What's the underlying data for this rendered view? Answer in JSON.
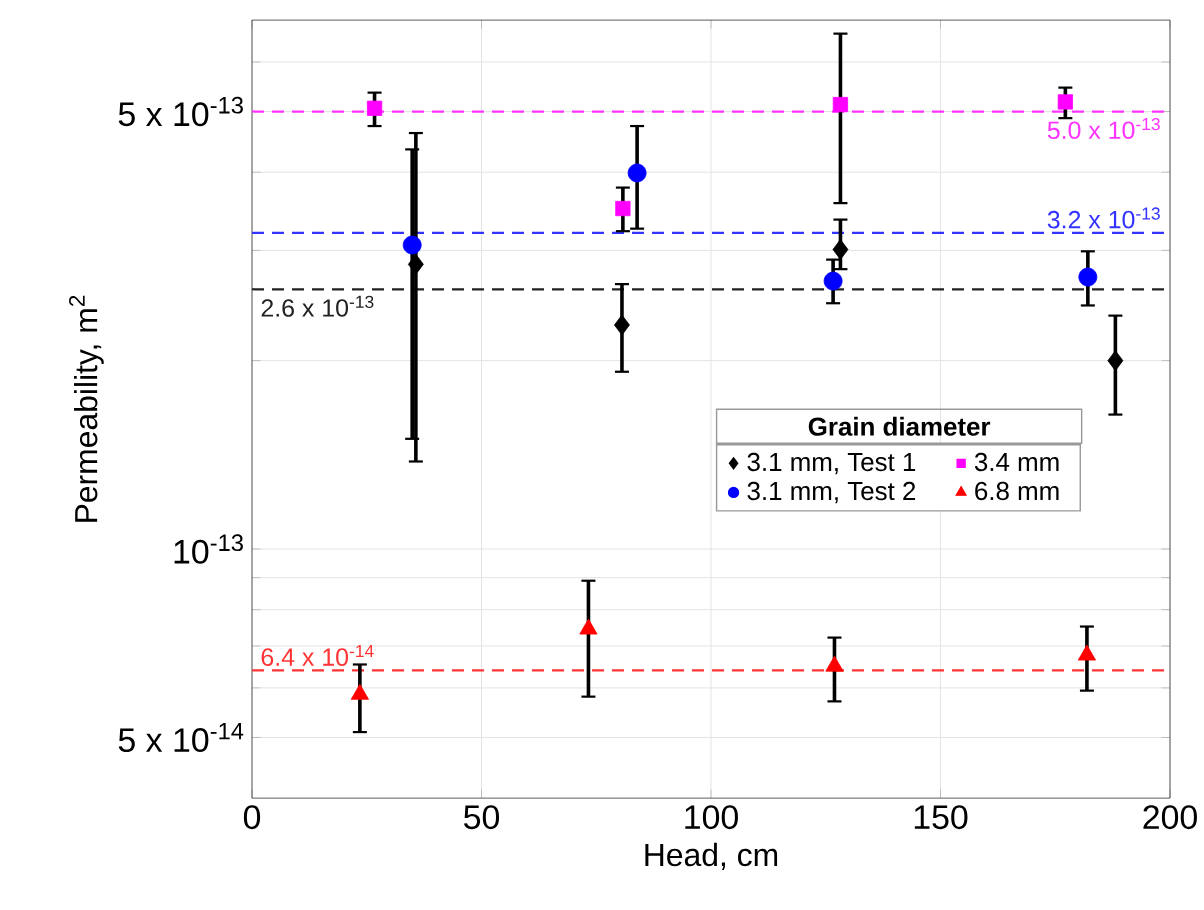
{
  "chart_data": {
    "type": "scatter",
    "xlabel": "Head, cm",
    "ylabel": "Permeability, m$^{2}$",
    "legend_title": "Grain diameter",
    "xlim": [
      0,
      200
    ],
    "xticks": [
      0,
      50,
      100,
      150,
      200
    ],
    "ylim": [
      4e-14,
      7e-13
    ],
    "yticks": [
      {
        "value": 5e-14,
        "label": "5 x 10$^{-14}$"
      },
      {
        "value": 6e-14,
        "label": null
      },
      {
        "value": 7e-14,
        "label": null
      },
      {
        "value": 8e-14,
        "label": null
      },
      {
        "value": 9e-14,
        "label": null
      },
      {
        "value": 1e-13,
        "label": "10$^{-13}$"
      },
      {
        "value": 2e-13,
        "label": null
      },
      {
        "value": 3e-13,
        "label": null
      },
      {
        "value": 4e-13,
        "label": null
      },
      {
        "value": 5e-13,
        "label": "5 x 10$^{-13}$"
      },
      {
        "value": 6e-13,
        "label": null
      }
    ],
    "log": "y",
    "grid": true,
    "legend": "right",
    "series": [
      {
        "name": "3.1 mm, Test 1",
        "color": "#000000",
        "marker": "diamond",
        "x": [
          35.7,
          80.6,
          128.2,
          188.1
        ],
        "values": [
          2.85e-13,
          2.28e-13,
          3.01e-13,
          2e-13
        ],
        "errors": [
          [
            1.38e-13,
            4.62e-13
          ],
          [
            1.92e-13,
            2.65e-13
          ],
          [
            2.8e-13,
            3.36e-13
          ],
          [
            1.64e-13,
            2.36e-13
          ]
        ]
      },
      {
        "name": "3.1 mm, Test 2",
        "color": "#0000ff",
        "marker": "circle",
        "x": [
          34.9,
          83.9,
          126.6,
          182.1
        ],
        "values": [
          3.06e-13,
          3.99e-13,
          2.68e-13,
          2.72e-13
        ],
        "errors": [
          [
            1.5e-13,
            4.35e-13
          ],
          [
            3.25e-13,
            4.74e-13
          ],
          [
            2.47e-13,
            2.9e-13
          ],
          [
            2.45e-13,
            2.99e-13
          ]
        ]
      },
      {
        "name": "3.4 mm",
        "color": "#ff00ff",
        "marker": "square",
        "x": [
          26.7,
          80.8,
          128.2,
          177.2
        ],
        "values": [
          5.06e-13,
          3.5e-13,
          5.13e-13,
          5.18e-13
        ],
        "errors": [
          [
            4.74e-13,
            5.36e-13
          ],
          [
            3.22e-13,
            3.78e-13
          ],
          [
            3.57e-13,
            6.66e-13
          ],
          [
            4.88e-13,
            5.46e-13
          ]
        ]
      },
      {
        "name": "6.8 mm",
        "color": "#ff0000",
        "marker": "triangle",
        "x": [
          23.5,
          73.3,
          126.9,
          181.9
        ],
        "values": [
          5.86e-14,
          7.45e-14,
          6.5e-14,
          6.77e-14
        ],
        "errors": [
          [
            5.1e-14,
            6.54e-14
          ],
          [
            5.81e-14,
            8.9e-14
          ],
          [
            5.71e-14,
            7.22e-14
          ],
          [
            5.94e-14,
            7.52e-14
          ]
        ]
      }
    ],
    "ref_lines": [
      {
        "axis": "y",
        "value": 5e-13,
        "label": "5.0 x 10$^{-13}$",
        "color": "#ff33ff",
        "line_style": "dashed"
      },
      {
        "axis": "y",
        "value": 3.2e-13,
        "label": "3.2 x 10$^{-13}$",
        "color": "#3333ff",
        "line_style": "dashed"
      },
      {
        "axis": "y",
        "value": 2.6e-13,
        "label": "2.6 x 10$^{-13}$",
        "color": "#222222",
        "line_style": "dashed"
      },
      {
        "axis": "y",
        "value": 6.4e-14,
        "label": "6.4 x 10$^{-14}$",
        "color": "#ff3333",
        "line_style": "dashed"
      }
    ]
  }
}
